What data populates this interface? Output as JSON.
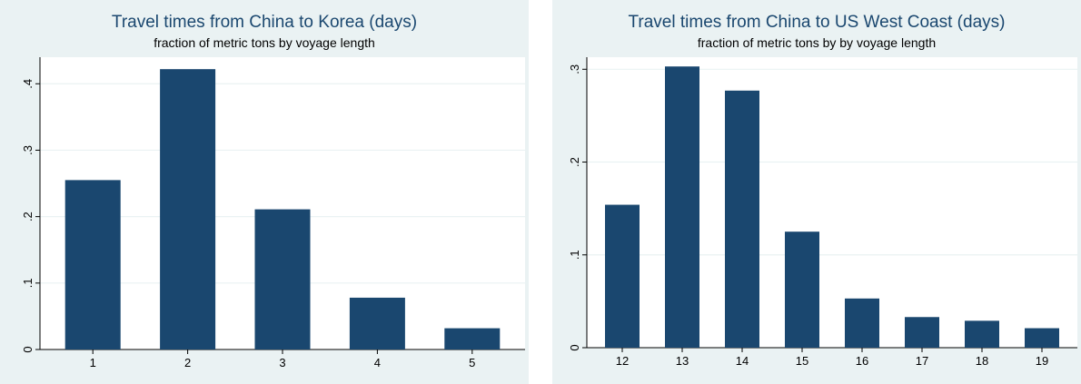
{
  "chart_data": [
    {
      "type": "bar",
      "title": "Travel times from China to Korea (days)",
      "subtitle": "fraction of metric tons by voyage length",
      "categories": [
        "1",
        "2",
        "3",
        "4",
        "5"
      ],
      "values": [
        0.255,
        0.422,
        0.211,
        0.078,
        0.032
      ],
      "yticks": [
        "0",
        ".1",
        ".2",
        ".3",
        ".4"
      ],
      "ylim": [
        0,
        0.44
      ],
      "grid": true,
      "bar_color": "#1a476f",
      "background": "#eaf2f3"
    },
    {
      "type": "bar",
      "title": "Travel times from China to US West Coast (days)",
      "subtitle": "fraction of metric tons by by voyage length",
      "categories": [
        "12",
        "13",
        "14",
        "15",
        "16",
        "17",
        "18",
        "19"
      ],
      "values": [
        0.154,
        0.303,
        0.277,
        0.125,
        0.053,
        0.033,
        0.029,
        0.021
      ],
      "yticks": [
        "0",
        ".1",
        ".2",
        ".3"
      ],
      "ylim": [
        0,
        0.313
      ],
      "grid": true,
      "bar_color": "#1a476f",
      "background": "#eaf2f3"
    }
  ]
}
